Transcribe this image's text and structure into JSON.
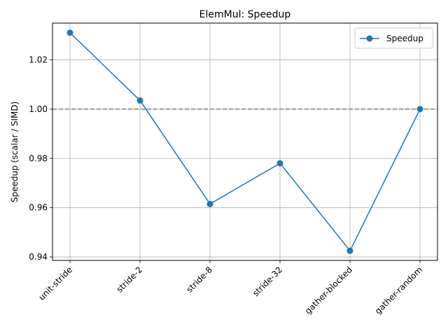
{
  "chart_data": {
    "type": "line",
    "title": "ElemMul: Speedup",
    "xlabel": "",
    "ylabel": "Speedup (scalar / SIMD)",
    "categories": [
      "unit-stride",
      "stride-2",
      "stride-8",
      "stride-32",
      "gather-blocked",
      "gather-random"
    ],
    "series": [
      {
        "name": "Speedup",
        "values": [
          1.031,
          1.0035,
          0.9615,
          0.978,
          0.9425,
          1.0
        ],
        "color": "#1f77b4",
        "marker": "circle"
      }
    ],
    "reference_line": {
      "y": 1.0,
      "style": "dashed",
      "color": "#808080"
    },
    "ylim": [
      0.9386,
      1.0349
    ],
    "yticks": [
      0.94,
      0.96,
      0.98,
      1.0,
      1.02
    ],
    "ytick_labels": [
      "0.94",
      "0.96",
      "0.98",
      "1.00",
      "1.02"
    ],
    "grid": true,
    "legend": "top-right",
    "xtick_rotation": 45
  }
}
